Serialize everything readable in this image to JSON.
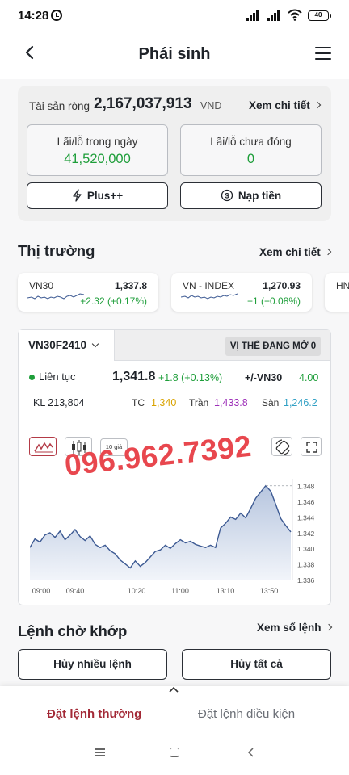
{
  "status_bar": {
    "time": "14:28",
    "battery": "40"
  },
  "header": {
    "title": "Phái sinh"
  },
  "assets": {
    "net_asset_label": "Tài sản ròng",
    "net_asset_value": "2,167,037,913",
    "net_asset_unit": "VND",
    "detail_link": "Xem chi tiết",
    "daily_pnl_label": "Lãi/lỗ trong ngày",
    "daily_pnl_value": "41,520,000",
    "open_pnl_label": "Lãi/lỗ chưa đóng",
    "open_pnl_value": "0",
    "plus_button": "Plus++",
    "deposit_button": "Nạp tiền"
  },
  "market": {
    "title": "Thị trường",
    "detail_link": "Xem chi tiết",
    "indices": [
      {
        "name": "VN30",
        "value": "1,337.8",
        "change": "+2.32 (+0.17%)"
      },
      {
        "name": "VN - INDEX",
        "value": "1,270.93",
        "change": "+1 (+0.08%)"
      },
      {
        "name": "HN"
      }
    ]
  },
  "derivative": {
    "contract": "VN30F2410",
    "open_positions_tab": "VỊ THẾ ĐANG MỞ 0",
    "session": "Liên tục",
    "last_price": "1,341.8",
    "change": "+1.8  (+0.13%)",
    "basis_label": "+/-VN30",
    "basis_value": "4.00",
    "volume": "KL 213,804",
    "ref_label": "TC",
    "ref_value": "1,340",
    "ceiling_label": "Trần",
    "ceiling_value": "1,433.8",
    "floor_label": "Sàn",
    "floor_value": "1,246.2",
    "range_tool": "10 giá",
    "watermark": "096.962.7392"
  },
  "chart_data": {
    "type": "area",
    "x_ticks": [
      "09:00",
      "09:40",
      "10:20",
      "11:00",
      "13:10",
      "13:50"
    ],
    "y_ticks": [
      "1.348",
      "1.346",
      "1.344",
      "1.342",
      "1.340",
      "1.338",
      "1.336"
    ],
    "ylim": [
      1.336,
      1.349
    ],
    "values": [
      1.3402,
      1.3413,
      1.3409,
      1.3418,
      1.3421,
      1.3415,
      1.3423,
      1.3412,
      1.3418,
      1.3425,
      1.3416,
      1.3411,
      1.3417,
      1.3406,
      1.3402,
      1.3405,
      1.3398,
      1.3394,
      1.3386,
      1.3381,
      1.3376,
      1.3385,
      1.3378,
      1.3383,
      1.339,
      1.3397,
      1.3399,
      1.3405,
      1.3401,
      1.3407,
      1.3412,
      1.3408,
      1.341,
      1.3406,
      1.3404,
      1.3402,
      1.3405,
      1.3402,
      1.3427,
      1.3433,
      1.3441,
      1.3438,
      1.3446,
      1.344,
      1.3452,
      1.3465,
      1.3473,
      1.3481,
      1.3474,
      1.3457,
      1.3439,
      1.343,
      1.3422
    ],
    "reference_line": 1.3481,
    "colors": {
      "line": "#3d5a93",
      "fill_top": "#b7c6df",
      "fill_bottom": "#f2f5fa"
    }
  },
  "pending_orders": {
    "title": "Lệnh chờ khớp",
    "book_link": "Xem sổ lệnh",
    "cancel_many": "Hủy nhiều lệnh",
    "cancel_all": "Hủy tất cả"
  },
  "bottom_tabs": {
    "normal_order": "Đặt lệnh thường",
    "conditional_order": "Đặt lệnh điều kiện"
  },
  "colors": {
    "accent": "#a32936",
    "positive": "#1e9e3a",
    "reference": "#d9a300",
    "ceiling": "#9d2fb8",
    "floor": "#2f9fc4"
  }
}
